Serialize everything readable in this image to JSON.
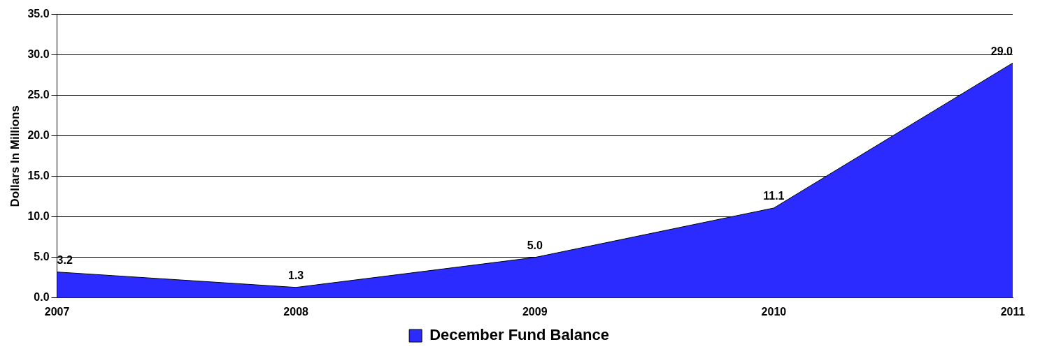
{
  "chart_data": {
    "type": "area",
    "ylabel": "Dollars In Millions",
    "categories": [
      "2007",
      "2008",
      "2009",
      "2010",
      "2011"
    ],
    "series": [
      {
        "name": "December Fund Balance",
        "color": "#2b2bff",
        "values": [
          3.2,
          1.3,
          5.0,
          11.1,
          29.0
        ],
        "value_labels": [
          "3.2",
          "1.3",
          "5.0",
          "11.1",
          "29.0"
        ]
      }
    ],
    "ylim": [
      0,
      35
    ],
    "yticks": [
      {
        "value": 0,
        "label": "0.0"
      },
      {
        "value": 5,
        "label": "5.0"
      },
      {
        "value": 10,
        "label": "10.0"
      },
      {
        "value": 15,
        "label": "15.0"
      },
      {
        "value": 20,
        "label": "20.0"
      },
      {
        "value": 25,
        "label": "25.0"
      },
      {
        "value": 30,
        "label": "30.0"
      },
      {
        "value": 35,
        "label": "35.0"
      }
    ],
    "grid": "y",
    "legend": "bottom"
  }
}
